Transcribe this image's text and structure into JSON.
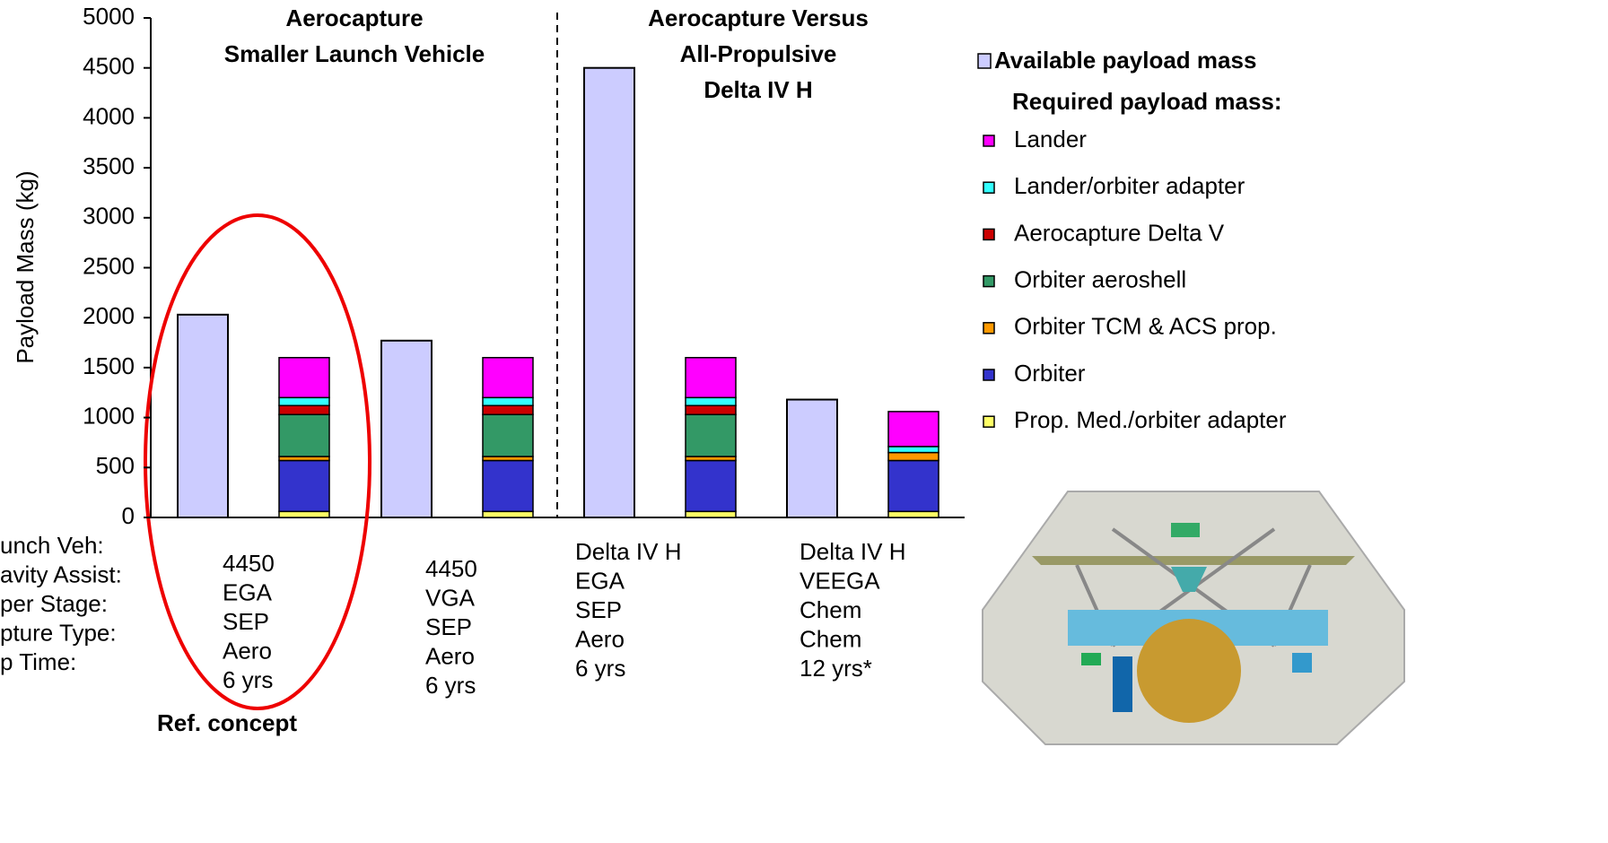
{
  "chart_data": {
    "type": "bar",
    "y_label": "Payload Mass (kg)",
    "section_titles": [
      [
        "Aerocapture",
        "Smaller Launch Vehicle"
      ],
      [
        "Aerocapture Versus",
        "All-Propulsive",
        "Delta IV H"
      ]
    ],
    "row_labels": [
      "unch Veh:",
      "avity Assist:",
      "per Stage:",
      "pture Type:",
      "p Time:"
    ],
    "categories": [
      [
        "4450",
        "EGA",
        "SEP",
        "Aero",
        "6 yrs"
      ],
      [
        "4450",
        "VGA",
        "SEP",
        "Aero",
        "6 yrs"
      ],
      [
        "Delta IV H",
        "EGA",
        "SEP",
        "Aero",
        "6 yrs"
      ],
      [
        "Delta IV H",
        "VEEGA",
        "Chem",
        "Chem",
        "12 yrs*"
      ]
    ],
    "annotation": "Ref. concept",
    "legend_title": "Required payload mass:",
    "series": [
      {
        "name": "Available payload mass",
        "color": "#ccccff",
        "values": [
          2030,
          1770,
          4500,
          1180
        ]
      },
      {
        "name": "Prop. Med./orbiter adapter",
        "color": "#ffff66",
        "values": [
          60,
          60,
          60,
          60
        ]
      },
      {
        "name": "Orbiter",
        "color": "#3333cc",
        "values": [
          510,
          510,
          510,
          510
        ]
      },
      {
        "name": "Orbiter TCM & ACS prop.",
        "color": "#ff9900",
        "values": [
          40,
          40,
          40,
          80
        ]
      },
      {
        "name": "Orbiter aeroshell",
        "color": "#339966",
        "values": [
          420,
          420,
          420,
          0
        ]
      },
      {
        "name": "Aerocapture Delta V",
        "color": "#cc0000",
        "values": [
          90,
          90,
          90,
          0
        ]
      },
      {
        "name": "Lander/orbiter adapter",
        "color": "#33ffff",
        "values": [
          80,
          80,
          80,
          60
        ]
      },
      {
        "name": "Lander",
        "color": "#ff00ff",
        "values": [
          400,
          400,
          400,
          350
        ]
      }
    ],
    "ylim": [
      0,
      5000
    ],
    "yticks": [
      0,
      500,
      1000,
      1500,
      2000,
      2500,
      3000,
      3500,
      4000,
      4500,
      5000
    ]
  }
}
